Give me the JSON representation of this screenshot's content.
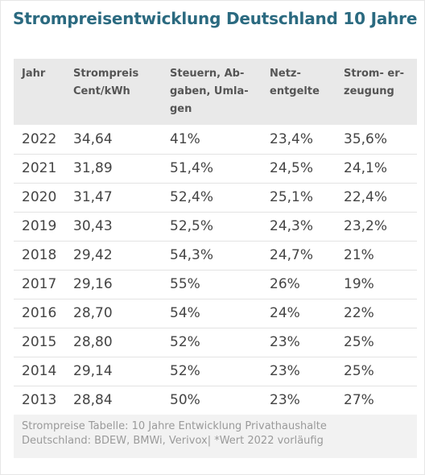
{
  "title": "Strompreisentwicklung Deutschland 10 Jahre",
  "table": {
    "headers": [
      "Jahr",
      "Strompreis\nCent/kWh",
      "Steuern, Ab-\ngaben, Umla-\ngen",
      "Netz-\nentgelte",
      "Strom- er-\nzeugung"
    ],
    "rows": [
      [
        "2022",
        "34,64",
        "41%",
        "23,4%",
        "35,6%"
      ],
      [
        "2021",
        "31,89",
        "51,4%",
        "24,5%",
        "24,1%"
      ],
      [
        "2020",
        "31,47",
        "52,4%",
        "25,1%",
        "22,4%"
      ],
      [
        "2019",
        "30,43",
        "52,5%",
        "24,3%",
        "23,2%"
      ],
      [
        "2018",
        "29,42",
        "54,3%",
        "24,7%",
        "21%"
      ],
      [
        "2017",
        "29,16",
        "55%",
        "26%",
        "19%"
      ],
      [
        "2016",
        "28,70",
        "54%",
        "24%",
        "22%"
      ],
      [
        "2015",
        "28,80",
        "52%",
        "23%",
        "25%"
      ],
      [
        "2014",
        "29,14",
        "52%",
        "23%",
        "25%"
      ],
      [
        "2013",
        "28,84",
        "50%",
        "23%",
        "27%"
      ]
    ]
  },
  "caption": "Strompreise Tabelle: 10 Jahre Entwicklung Privathaushalte\nDeutschland: BDEW, BMWi, Verivox| *Wert 2022 vorläufig"
}
